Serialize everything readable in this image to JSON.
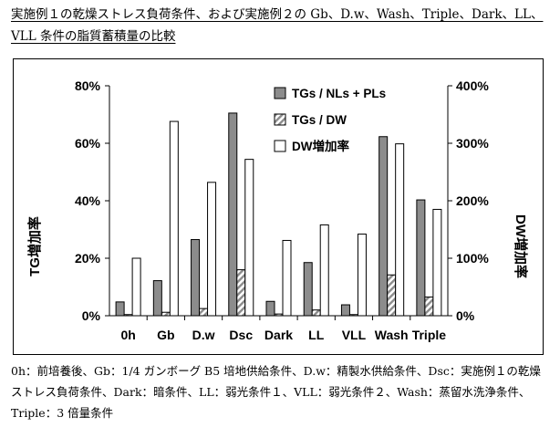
{
  "heading": "実施例１の乾燥ストレス負荷条件、および実施例２の Gb、D.w、Wash、Triple、Dark、LL、VLL 条件の脂質蓄積量の比較",
  "caption": "0h：前培養後、Gb：1/4 ガンボーグ B5 培地供給条件、D.w：精製水供給条件、Dsc：実施例１の乾燥ストレス負荷条件、Dark：暗条件、LL：弱光条件１、VLL：弱光条件２、Wash：蒸留水洗浄条件、Triple：3 倍量条件",
  "colors": {
    "bar_gray": "#8c8c8c",
    "bar_hatch": "#8c8c8c",
    "bar_white": "#ffffff",
    "outline": "#000000"
  },
  "chart_data": {
    "type": "bar",
    "categories": [
      "0h",
      "Gb",
      "D.w",
      "Dsc",
      "Dark",
      "LL",
      "VLL",
      "Wash",
      "Triple"
    ],
    "series": [
      {
        "name": "TGs / NLs + PLs",
        "axis": "left",
        "fill": "solid-gray",
        "values": [
          4.8,
          12.2,
          26.5,
          70.5,
          5.0,
          18.5,
          3.8,
          62.3,
          40.3
        ]
      },
      {
        "name": "TGs / DW",
        "axis": "left",
        "fill": "hatched",
        "values": [
          0.4,
          1.2,
          2.5,
          16.0,
          0.6,
          2.0,
          0.4,
          14.2,
          6.5
        ]
      },
      {
        "name": "DW増加率",
        "axis": "right",
        "fill": "white",
        "values": [
          100,
          338,
          232,
          272,
          131,
          158,
          142,
          299,
          185
        ]
      }
    ],
    "ylabel": "TG増加率",
    "ylabel_right": "DW増加率",
    "ylim": [
      0,
      80
    ],
    "ylim_right": [
      0,
      400
    ],
    "yticks": [
      "0%",
      "20%",
      "40%",
      "60%",
      "80%"
    ],
    "yticks_right": [
      "0%",
      "100%",
      "200%",
      "300%",
      "400%"
    ],
    "grid": false,
    "legend_position": "top-right"
  }
}
